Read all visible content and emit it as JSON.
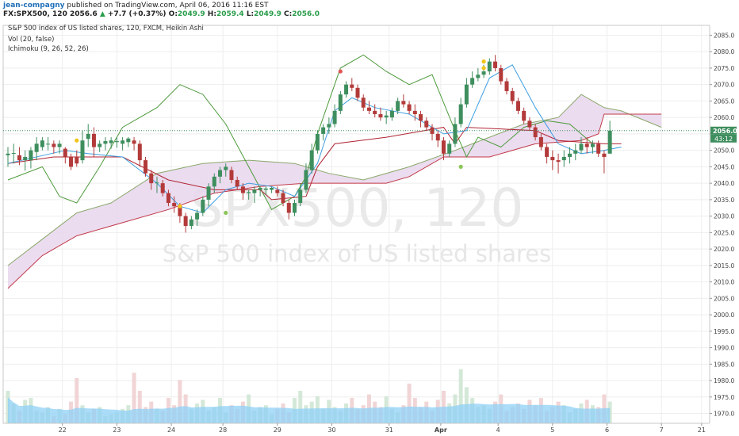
{
  "header": {
    "author": "jean-compagny",
    "published": "published on TradingView.com, April 06, 2016 11:16 EST",
    "symbol": "FX:SPX500, 120",
    "last": "2056.6",
    "change_arrow": "▲",
    "change": "+7.7 (+0.37%)",
    "o_label": "O:",
    "o_value": "2049.9",
    "h_label": "H:",
    "h_value": "2059.4",
    "l_label": "L:",
    "l_value": "2049.9",
    "c_label": "C:",
    "c_value": "2056.0"
  },
  "legend": {
    "title": "S&P 500 index of US listed shares, 120, FXCM, Heikin Ashi",
    "vol": "Vol (20, false)",
    "ichimoku": "Ichimoku (9, 26, 52, 26)"
  },
  "watermark": {
    "symbol": "SPX500, 120",
    "name": "S&P 500 index of US listed shares"
  },
  "price_tag": {
    "price": "2056.0",
    "countdown": "43:12"
  },
  "colors": {
    "up": "#3e8e5e",
    "down": "#b33a3a",
    "tenkan": "#3c9de0",
    "kijun": "#b02433",
    "chikou": "#4e9a3c",
    "cloud": "#e7d6ec",
    "volume_ma": "#8fd0f5",
    "tag_bg": "#3e8e5e",
    "dot_yellow": "#f2c318",
    "dot_green": "#8cc65a",
    "dot_red": "#e05454"
  },
  "chart_data": {
    "type": "candlestick",
    "style": "Heikin Ashi",
    "ylim": [
      1967,
      2088
    ],
    "y_ticks": [
      2085,
      2080,
      2075,
      2070,
      2065,
      2060,
      2055,
      2050,
      2045,
      2040,
      2035,
      2030,
      2025,
      2020,
      2015,
      2010,
      2005,
      2000,
      1995,
      1990,
      1985,
      1980,
      1975,
      1970
    ],
    "y_tick_labels": [
      "2085.0",
      "2080.0",
      "2075.0",
      "2070.0",
      "2065.0",
      "2060.0",
      "2055.0",
      "2050.0",
      "2045.0",
      "2040.0",
      "2035.0",
      "2030.0",
      "2025.0",
      "2020.0",
      "2015.0",
      "2010.0",
      "2005.0",
      "2000.0",
      "1995.0",
      "1990.0",
      "1985.0",
      "1980.0",
      "1975.0",
      "1970.0"
    ],
    "x_ticks": [
      "22",
      "23",
      "24",
      "28",
      "29",
      "30",
      "31",
      "Apr",
      "4",
      "5",
      "6",
      "7",
      "21"
    ],
    "grid": true,
    "candles": [
      {
        "o": 2048.5,
        "h": 2051,
        "l": 2045,
        "c": 2049
      },
      {
        "o": 2049,
        "h": 2052,
        "l": 2046,
        "c": 2049.2
      },
      {
        "o": 2048.5,
        "h": 2051,
        "l": 2045.5,
        "c": 2047
      },
      {
        "o": 2047,
        "h": 2050,
        "l": 2043.8,
        "c": 2048
      },
      {
        "o": 2047,
        "h": 2051,
        "l": 2044.5,
        "c": 2050
      },
      {
        "o": 2049.5,
        "h": 2054,
        "l": 2047,
        "c": 2052
      },
      {
        "o": 2051,
        "h": 2054,
        "l": 2050,
        "c": 2053
      },
      {
        "o": 2052,
        "h": 2054,
        "l": 2050,
        "c": 2052
      },
      {
        "o": 2052,
        "h": 2053,
        "l": 2049,
        "c": 2051
      },
      {
        "o": 2051,
        "h": 2053,
        "l": 2049,
        "c": 2052
      },
      {
        "o": 2050.5,
        "h": 2051,
        "l": 2046,
        "c": 2048
      },
      {
        "o": 2048,
        "h": 2049,
        "l": 2044,
        "c": 2045
      },
      {
        "o": 2048,
        "h": 2050,
        "l": 2045,
        "c": 2046
      },
      {
        "o": 2047,
        "h": 2056,
        "l": 2046,
        "c": 2053
      },
      {
        "o": 2053.5,
        "h": 2058,
        "l": 2051,
        "c": 2055
      },
      {
        "o": 2055,
        "h": 2057,
        "l": 2048,
        "c": 2051
      },
      {
        "o": 2051,
        "h": 2053,
        "l": 2049.5,
        "c": 2052
      },
      {
        "o": 2052,
        "h": 2054,
        "l": 2050,
        "c": 2052.8
      },
      {
        "o": 2052.2,
        "h": 2054,
        "l": 2050.5,
        "c": 2053
      },
      {
        "o": 2052.5,
        "h": 2054,
        "l": 2050.8,
        "c": 2052.8
      },
      {
        "o": 2052,
        "h": 2054,
        "l": 2050,
        "c": 2053
      },
      {
        "o": 2052.5,
        "h": 2054,
        "l": 2051,
        "c": 2053.6
      },
      {
        "o": 2053,
        "h": 2054,
        "l": 2050,
        "c": 2052
      },
      {
        "o": 2052,
        "h": 2053,
        "l": 2045,
        "c": 2047
      },
      {
        "o": 2047,
        "h": 2048,
        "l": 2042,
        "c": 2043
      },
      {
        "o": 2043,
        "h": 2044,
        "l": 2038,
        "c": 2040
      },
      {
        "o": 2040,
        "h": 2042,
        "l": 2037,
        "c": 2040.2
      },
      {
        "o": 2040,
        "h": 2041,
        "l": 2036,
        "c": 2037
      },
      {
        "o": 2037,
        "h": 2038,
        "l": 2033,
        "c": 2034
      },
      {
        "o": 2034,
        "h": 2036,
        "l": 2031,
        "c": 2033
      },
      {
        "o": 2033,
        "h": 2034,
        "l": 2028,
        "c": 2030
      },
      {
        "o": 2030,
        "h": 2031,
        "l": 2025,
        "c": 2027
      },
      {
        "o": 2027,
        "h": 2030,
        "l": 2026,
        "c": 2029
      },
      {
        "o": 2029,
        "h": 2032,
        "l": 2027,
        "c": 2031
      },
      {
        "o": 2031,
        "h": 2036,
        "l": 2030,
        "c": 2035
      },
      {
        "o": 2035,
        "h": 2040,
        "l": 2033,
        "c": 2039
      },
      {
        "o": 2039,
        "h": 2043,
        "l": 2037,
        "c": 2042
      },
      {
        "o": 2042,
        "h": 2045,
        "l": 2040,
        "c": 2044
      },
      {
        "o": 2044,
        "h": 2046,
        "l": 2042,
        "c": 2045
      },
      {
        "o": 2044,
        "h": 2045,
        "l": 2040,
        "c": 2041
      },
      {
        "o": 2041,
        "h": 2042,
        "l": 2038,
        "c": 2039
      },
      {
        "o": 2039,
        "h": 2040,
        "l": 2035,
        "c": 2037
      },
      {
        "o": 2037,
        "h": 2038,
        "l": 2035,
        "c": 2037.3
      },
      {
        "o": 2037,
        "h": 2039,
        "l": 2034,
        "c": 2038
      },
      {
        "o": 2038,
        "h": 2039,
        "l": 2036,
        "c": 2038.6
      },
      {
        "o": 2038,
        "h": 2039,
        "l": 2036.5,
        "c": 2038.4
      },
      {
        "o": 2038,
        "h": 2039,
        "l": 2037,
        "c": 2038.6
      },
      {
        "o": 2038,
        "h": 2039,
        "l": 2036,
        "c": 2037
      },
      {
        "o": 2037,
        "h": 2038,
        "l": 2033,
        "c": 2034
      },
      {
        "o": 2034,
        "h": 2035,
        "l": 2029,
        "c": 2031
      },
      {
        "o": 2031,
        "h": 2035,
        "l": 2030,
        "c": 2034
      },
      {
        "o": 2034,
        "h": 2040,
        "l": 2033,
        "c": 2038
      },
      {
        "o": 2038,
        "h": 2046,
        "l": 2037,
        "c": 2044
      },
      {
        "o": 2044,
        "h": 2052,
        "l": 2043,
        "c": 2050
      },
      {
        "o": 2050,
        "h": 2056,
        "l": 2049,
        "c": 2055
      },
      {
        "o": 2055,
        "h": 2058,
        "l": 2053,
        "c": 2057
      },
      {
        "o": 2057,
        "h": 2060,
        "l": 2055,
        "c": 2058
      },
      {
        "o": 2058,
        "h": 2064,
        "l": 2057,
        "c": 2062
      },
      {
        "o": 2062,
        "h": 2068,
        "l": 2061,
        "c": 2067
      },
      {
        "o": 2067,
        "h": 2071,
        "l": 2066,
        "c": 2070
      },
      {
        "o": 2070,
        "h": 2072,
        "l": 2068,
        "c": 2069
      },
      {
        "o": 2069,
        "h": 2070,
        "l": 2065,
        "c": 2066
      },
      {
        "o": 2066,
        "h": 2067,
        "l": 2062,
        "c": 2063
      },
      {
        "o": 2063,
        "h": 2065,
        "l": 2061,
        "c": 2062
      },
      {
        "o": 2062,
        "h": 2064,
        "l": 2060,
        "c": 2061
      },
      {
        "o": 2061,
        "h": 2063,
        "l": 2059,
        "c": 2060
      },
      {
        "o": 2060,
        "h": 2062,
        "l": 2058,
        "c": 2060.6
      },
      {
        "o": 2060,
        "h": 2063,
        "l": 2059,
        "c": 2062
      },
      {
        "o": 2062,
        "h": 2066,
        "l": 2061,
        "c": 2065
      },
      {
        "o": 2065,
        "h": 2067,
        "l": 2063,
        "c": 2064
      },
      {
        "o": 2064,
        "h": 2065,
        "l": 2061,
        "c": 2062
      },
      {
        "o": 2062,
        "h": 2064,
        "l": 2059,
        "c": 2061
      },
      {
        "o": 2061,
        "h": 2062,
        "l": 2057,
        "c": 2059
      },
      {
        "o": 2059,
        "h": 2060,
        "l": 2056,
        "c": 2057
      },
      {
        "o": 2057,
        "h": 2058,
        "l": 2053,
        "c": 2055
      },
      {
        "o": 2055,
        "h": 2056,
        "l": 2051,
        "c": 2053
      },
      {
        "o": 2053,
        "h": 2054,
        "l": 2047,
        "c": 2049
      },
      {
        "o": 2049,
        "h": 2053,
        "l": 2048,
        "c": 2052
      },
      {
        "o": 2052,
        "h": 2060,
        "l": 2051,
        "c": 2058
      },
      {
        "o": 2058,
        "h": 2066,
        "l": 2057,
        "c": 2064
      },
      {
        "o": 2064,
        "h": 2072,
        "l": 2063,
        "c": 2070
      },
      {
        "o": 2070,
        "h": 2074,
        "l": 2069,
        "c": 2072
      },
      {
        "o": 2072,
        "h": 2075,
        "l": 2071,
        "c": 2073
      },
      {
        "o": 2073,
        "h": 2076,
        "l": 2072,
        "c": 2074
      },
      {
        "o": 2074,
        "h": 2078,
        "l": 2073,
        "c": 2077
      },
      {
        "o": 2077,
        "h": 2079,
        "l": 2074,
        "c": 2075
      },
      {
        "o": 2075,
        "h": 2076,
        "l": 2070,
        "c": 2071
      },
      {
        "o": 2071,
        "h": 2072,
        "l": 2067,
        "c": 2068
      },
      {
        "o": 2068,
        "h": 2069,
        "l": 2064,
        "c": 2065
      },
      {
        "o": 2065,
        "h": 2066,
        "l": 2061,
        "c": 2062
      },
      {
        "o": 2062,
        "h": 2063,
        "l": 2058,
        "c": 2059
      },
      {
        "o": 2059,
        "h": 2060,
        "l": 2056,
        "c": 2057
      },
      {
        "o": 2057,
        "h": 2058,
        "l": 2053,
        "c": 2054
      },
      {
        "o": 2054,
        "h": 2055,
        "l": 2050,
        "c": 2051
      },
      {
        "o": 2051,
        "h": 2052,
        "l": 2046,
        "c": 2048
      },
      {
        "o": 2048,
        "h": 2050,
        "l": 2044,
        "c": 2047
      },
      {
        "o": 2047,
        "h": 2049,
        "l": 2043,
        "c": 2046.5
      },
      {
        "o": 2047,
        "h": 2050,
        "l": 2045,
        "c": 2048
      },
      {
        "o": 2048,
        "h": 2051,
        "l": 2046,
        "c": 2049
      },
      {
        "o": 2049,
        "h": 2052,
        "l": 2047,
        "c": 2050
      },
      {
        "o": 2050,
        "h": 2054,
        "l": 2049,
        "c": 2052
      },
      {
        "o": 2052,
        "h": 2054,
        "l": 2049,
        "c": 2051
      },
      {
        "o": 2051,
        "h": 2053,
        "l": 2049,
        "c": 2052
      },
      {
        "o": 2052,
        "h": 2053,
        "l": 2048,
        "c": 2049
      },
      {
        "o": 2049,
        "h": 2050,
        "l": 2043,
        "c": 2048
      },
      {
        "o": 2049,
        "h": 2059,
        "l": 2049,
        "c": 2056
      }
    ],
    "ichimoku": {
      "tenkan": [
        [
          0,
          2046
        ],
        [
          10,
          2050
        ],
        [
          14,
          2049
        ],
        [
          20,
          2048
        ],
        [
          26,
          2040
        ],
        [
          30,
          2033
        ],
        [
          34,
          2031
        ],
        [
          38,
          2038
        ],
        [
          42,
          2040
        ],
        [
          46,
          2039
        ],
        [
          50,
          2036
        ],
        [
          54,
          2046
        ],
        [
          57,
          2062
        ],
        [
          60,
          2066
        ],
        [
          64,
          2063
        ],
        [
          70,
          2061
        ],
        [
          76,
          2055
        ],
        [
          80,
          2056
        ],
        [
          84,
          2072
        ],
        [
          88,
          2076
        ],
        [
          92,
          2063
        ],
        [
          96,
          2052
        ],
        [
          100,
          2049
        ],
        [
          104,
          2050
        ],
        [
          107,
          2051
        ]
      ],
      "kijun": [
        [
          0,
          2046
        ],
        [
          8,
          2048
        ],
        [
          20,
          2048
        ],
        [
          28,
          2041
        ],
        [
          36,
          2038
        ],
        [
          44,
          2038
        ],
        [
          46,
          2035
        ],
        [
          52,
          2036
        ],
        [
          54,
          2045
        ],
        [
          57,
          2052
        ],
        [
          66,
          2054
        ],
        [
          76,
          2057
        ],
        [
          78,
          2052
        ],
        [
          80,
          2057
        ],
        [
          92,
          2056
        ],
        [
          96,
          2053
        ],
        [
          104,
          2052
        ],
        [
          107,
          2052
        ]
      ],
      "chikou": [
        [
          0,
          2041
        ],
        [
          6,
          2045
        ],
        [
          9,
          2036
        ],
        [
          12,
          2034
        ],
        [
          16,
          2045
        ],
        [
          20,
          2057
        ],
        [
          26,
          2063
        ],
        [
          30,
          2070
        ],
        [
          34,
          2067
        ],
        [
          38,
          2058
        ],
        [
          42,
          2045
        ],
        [
          46,
          2032
        ],
        [
          50,
          2036
        ],
        [
          52,
          2042
        ],
        [
          54,
          2055
        ],
        [
          58,
          2075
        ],
        [
          62,
          2079
        ],
        [
          66,
          2074
        ],
        [
          70,
          2070
        ],
        [
          74,
          2073
        ],
        [
          78,
          2056
        ],
        [
          80,
          2048
        ],
        [
          82,
          2054
        ],
        [
          86,
          2051
        ],
        [
          90,
          2057
        ],
        [
          94,
          2059
        ],
        [
          98,
          2058
        ],
        [
          102,
          2052
        ]
      ],
      "span_a": [
        [
          0,
          2015
        ],
        [
          6,
          2023
        ],
        [
          12,
          2031
        ],
        [
          18,
          2034
        ],
        [
          26,
          2043
        ],
        [
          34,
          2046
        ],
        [
          42,
          2047
        ],
        [
          50,
          2046
        ],
        [
          56,
          2043
        ],
        [
          62,
          2041
        ],
        [
          70,
          2045
        ],
        [
          78,
          2050
        ],
        [
          84,
          2054
        ],
        [
          90,
          2058
        ],
        [
          96,
          2060
        ],
        [
          100,
          2067
        ],
        [
          104,
          2063
        ],
        [
          107,
          2062
        ],
        [
          114,
          2057
        ]
      ],
      "span_b": [
        [
          0,
          2008
        ],
        [
          6,
          2018
        ],
        [
          12,
          2024
        ],
        [
          20,
          2028
        ],
        [
          28,
          2032
        ],
        [
          36,
          2037
        ],
        [
          44,
          2039
        ],
        [
          52,
          2040
        ],
        [
          60,
          2040
        ],
        [
          66,
          2040
        ],
        [
          70,
          2042
        ],
        [
          76,
          2048
        ],
        [
          84,
          2048
        ],
        [
          92,
          2052
        ],
        [
          100,
          2053
        ],
        [
          103,
          2055
        ],
        [
          104,
          2061
        ],
        [
          114,
          2061
        ]
      ]
    },
    "signals": [
      {
        "type": "dot_yellow",
        "x": 12,
        "y": 2053
      },
      {
        "type": "dot_yellow",
        "x": 30,
        "y": 2033
      },
      {
        "type": "dot_green",
        "x": 38,
        "y": 2031
      },
      {
        "type": "dot_red",
        "x": 58,
        "y": 2074
      },
      {
        "type": "dot_green",
        "x": 79,
        "y": 2045
      },
      {
        "type": "dot_yellow",
        "x": 83,
        "y": 2077
      },
      {
        "type": "dot_yellow",
        "x": 83,
        "y": 2075
      }
    ],
    "volume": [
      18,
      11,
      7,
      13,
      14,
      7,
      6,
      9,
      4,
      8,
      5,
      12,
      25,
      10,
      6,
      8,
      9,
      4,
      5,
      6,
      8,
      10,
      28,
      18,
      9,
      12,
      8,
      7,
      14,
      10,
      24,
      16,
      8,
      11,
      13,
      7,
      9,
      14,
      6,
      10,
      8,
      12,
      16,
      7,
      9,
      10,
      5,
      8,
      11,
      6,
      14,
      18,
      10,
      12,
      15,
      8,
      13,
      9,
      7,
      11,
      14,
      8,
      10,
      16,
      12,
      9,
      15,
      8,
      6,
      10,
      22,
      14,
      9,
      12,
      7,
      13,
      18,
      11,
      16,
      30,
      20,
      14,
      9,
      10,
      8,
      12,
      16,
      7,
      9,
      11,
      8,
      13,
      10,
      14,
      7,
      9,
      12,
      10,
      6,
      8,
      11,
      13,
      10,
      9,
      16,
      12,
      18
    ]
  }
}
